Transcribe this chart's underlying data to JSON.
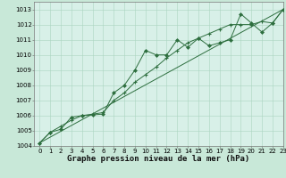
{
  "title": "Graphe pression niveau de la mer (hPa)",
  "bg_color": "#c8e8d8",
  "plot_bg_color": "#d8f0e8",
  "grid_color": "#aad4c0",
  "line_color": "#2d6e3e",
  "marker_color": "#2d6e3e",
  "xlim": [
    -0.5,
    23
  ],
  "ylim": [
    1004,
    1013.5
  ],
  "yticks": [
    1004,
    1005,
    1006,
    1007,
    1008,
    1009,
    1010,
    1011,
    1012,
    1013
  ],
  "xticks": [
    0,
    1,
    2,
    3,
    4,
    5,
    6,
    7,
    8,
    9,
    10,
    11,
    12,
    13,
    14,
    15,
    16,
    17,
    18,
    19,
    20,
    21,
    22,
    23
  ],
  "series1_x": [
    0,
    1,
    2,
    3,
    4,
    5,
    6,
    7,
    8,
    9,
    10,
    11,
    12,
    13,
    14,
    15,
    16,
    17,
    18,
    19,
    20,
    21,
    22,
    23
  ],
  "series1_y": [
    1004.2,
    1004.9,
    1005.1,
    1005.9,
    1006.0,
    1006.05,
    1006.1,
    1007.5,
    1008.0,
    1009.0,
    1010.3,
    1010.0,
    1010.0,
    1011.0,
    1010.5,
    1011.1,
    1010.6,
    1010.8,
    1011.0,
    1012.7,
    1012.1,
    1011.5,
    1012.1,
    1013.0
  ],
  "series2_x": [
    0,
    1,
    2,
    3,
    4,
    5,
    6,
    7,
    8,
    9,
    10,
    11,
    12,
    13,
    14,
    15,
    16,
    17,
    18,
    19,
    20,
    21,
    22,
    23
  ],
  "series2_y": [
    1004.2,
    1004.9,
    1005.3,
    1005.7,
    1006.0,
    1006.1,
    1006.2,
    1007.0,
    1007.5,
    1008.2,
    1008.7,
    1009.2,
    1009.8,
    1010.3,
    1010.8,
    1011.1,
    1011.4,
    1011.7,
    1012.0,
    1012.0,
    1012.0,
    1012.2,
    1012.1,
    1013.0
  ],
  "series3_x": [
    0,
    23
  ],
  "series3_y": [
    1004.2,
    1013.0
  ],
  "title_fontsize": 6.5,
  "tick_fontsize": 5.0
}
